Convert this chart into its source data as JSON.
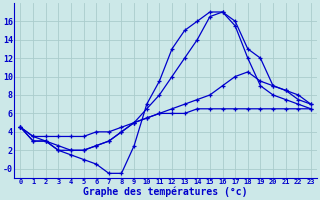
{
  "title": "Graphe des températures (°c)",
  "background_color": "#cce8e8",
  "grid_color": "#aacccc",
  "line_color": "#0000cc",
  "hours": [
    0,
    1,
    2,
    3,
    4,
    5,
    6,
    7,
    8,
    9,
    10,
    11,
    12,
    13,
    14,
    15,
    16,
    17,
    18,
    19,
    20,
    21,
    22,
    23
  ],
  "temp_inst": [
    4.5,
    3.0,
    3.0,
    2.0,
    1.5,
    1.0,
    0.5,
    -0.5,
    -0.5,
    2.5,
    7.0,
    9.5,
    13.0,
    15.0,
    16.0,
    17.0,
    17.0,
    15.5,
    12.0,
    9.0,
    8.0,
    7.5,
    7.0,
    6.5
  ],
  "temp_max": [
    4.5,
    3.5,
    3.0,
    2.5,
    2.0,
    2.0,
    2.5,
    3.0,
    4.0,
    5.0,
    6.5,
    8.0,
    10.0,
    12.0,
    14.0,
    16.5,
    17.0,
    16.0,
    13.0,
    12.0,
    9.0,
    8.5,
    8.0,
    7.0
  ],
  "temp_min": [
    4.5,
    3.5,
    3.5,
    3.5,
    3.5,
    3.5,
    4.0,
    4.0,
    4.5,
    5.0,
    5.5,
    6.0,
    6.0,
    6.0,
    6.5,
    6.5,
    6.5,
    6.5,
    6.5,
    6.5,
    6.5,
    6.5,
    6.5,
    6.5
  ],
  "temp_ressentie": [
    4.5,
    3.0,
    3.0,
    2.0,
    2.0,
    2.0,
    2.5,
    3.0,
    4.0,
    5.0,
    5.5,
    6.0,
    6.5,
    7.0,
    7.5,
    8.0,
    9.0,
    10.0,
    10.5,
    9.5,
    9.0,
    8.5,
    7.5,
    7.0
  ],
  "ylim": [
    -1,
    18
  ],
  "yticks": [
    0,
    2,
    4,
    6,
    8,
    10,
    12,
    14,
    16
  ],
  "ytick_labels": [
    "-0",
    "2",
    "4",
    "6",
    "8",
    "10",
    "12",
    "14",
    "16"
  ],
  "xlim": [
    -0.5,
    23.5
  ]
}
